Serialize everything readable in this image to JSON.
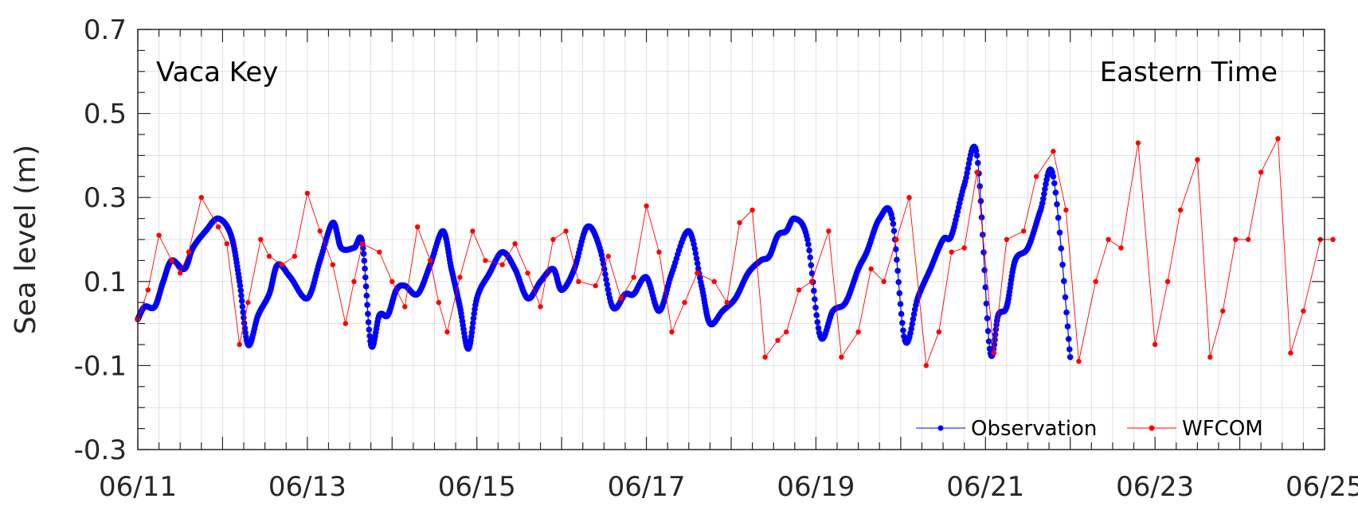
{
  "chart_data": {
    "type": "line",
    "ylabel": "Sea level (m)",
    "ylim": [
      -0.3,
      0.7
    ],
    "yticks": [
      -0.3,
      -0.1,
      0.1,
      0.3,
      0.5,
      0.7
    ],
    "ytick_labels": [
      "-0.3",
      "-0.1",
      "0.1",
      "0.3",
      "0.5",
      "0.7"
    ],
    "xlim_days": [
      0,
      14
    ],
    "xtick_labels": [
      "06/11",
      "06/13",
      "06/15",
      "06/17",
      "06/19",
      "06/21",
      "06/23",
      "06/25"
    ],
    "grid": true,
    "legend_position": "bottom-right",
    "annotations": {
      "station": "Vaca Key",
      "timezone": "Eastern Time"
    },
    "colors": {
      "observation": "#0000ff",
      "wfcom": "#ff0000",
      "grid": "#d9d9d9"
    },
    "series": [
      {
        "name": "Observation",
        "x_unit": "days since 06/11 00:00",
        "x": [
          0.0,
          0.08,
          0.2,
          0.3,
          0.4,
          0.55,
          0.65,
          0.8,
          0.95,
          1.1,
          1.2,
          1.3,
          1.42,
          1.55,
          1.65,
          1.8,
          2.0,
          2.15,
          2.3,
          2.4,
          2.55,
          2.65,
          2.75,
          2.85,
          2.95,
          3.05,
          3.15,
          3.3,
          3.45,
          3.6,
          3.7,
          3.8,
          3.9,
          4.0,
          4.15,
          4.3,
          4.45,
          4.6,
          4.75,
          4.9,
          5.0,
          5.15,
          5.3,
          5.45,
          5.6,
          5.75,
          5.85,
          6.0,
          6.15,
          6.3,
          6.5,
          6.65,
          6.75,
          6.9,
          7.05,
          7.2,
          7.35,
          7.45,
          7.55,
          7.65,
          7.75,
          7.9,
          8.05,
          8.2,
          8.35,
          8.5,
          8.6,
          8.75,
          8.9,
          9.05,
          9.2,
          9.35,
          9.5,
          9.6,
          9.75,
          9.9,
          10.05,
          10.15,
          10.25,
          10.35,
          10.5,
          10.65,
          10.8,
          11.0
        ],
        "y": [
          0.01,
          0.04,
          0.04,
          0.1,
          0.15,
          0.13,
          0.18,
          0.22,
          0.25,
          0.21,
          0.1,
          -0.05,
          0.02,
          0.07,
          0.14,
          0.11,
          0.06,
          0.15,
          0.24,
          0.18,
          0.18,
          0.19,
          -0.05,
          0.02,
          0.02,
          0.08,
          0.09,
          0.07,
          0.14,
          0.22,
          0.13,
          0.04,
          -0.06,
          0.06,
          0.12,
          0.17,
          0.13,
          0.06,
          0.1,
          0.13,
          0.08,
          0.13,
          0.23,
          0.18,
          0.04,
          0.07,
          0.07,
          0.11,
          0.03,
          0.12,
          0.22,
          0.09,
          0.0,
          0.03,
          0.06,
          0.12,
          0.15,
          0.16,
          0.21,
          0.22,
          0.25,
          0.2,
          -0.03,
          0.03,
          0.05,
          0.13,
          0.17,
          0.25,
          0.25,
          -0.04,
          0.06,
          0.13,
          0.2,
          0.21,
          0.33,
          0.4,
          -0.06,
          0.02,
          0.04,
          0.15,
          0.18,
          0.27,
          0.35,
          -0.08
        ]
      },
      {
        "name": "WFCOM",
        "x_unit": "days since 06/11 00:00",
        "x": [
          0.0,
          0.12,
          0.25,
          0.4,
          0.5,
          0.6,
          0.75,
          0.95,
          1.05,
          1.2,
          1.3,
          1.45,
          1.55,
          1.7,
          1.85,
          2.0,
          2.15,
          2.3,
          2.45,
          2.55,
          2.65,
          2.85,
          3.0,
          3.15,
          3.3,
          3.45,
          3.55,
          3.65,
          3.8,
          3.95,
          4.1,
          4.3,
          4.45,
          4.6,
          4.75,
          4.9,
          5.05,
          5.2,
          5.4,
          5.55,
          5.7,
          5.85,
          6.0,
          6.15,
          6.3,
          6.45,
          6.6,
          6.8,
          6.95,
          7.1,
          7.25,
          7.4,
          7.55,
          7.65,
          7.8,
          7.95,
          8.15,
          8.3,
          8.5,
          8.65,
          8.8,
          8.95,
          9.1,
          9.3,
          9.45,
          9.6,
          9.75,
          9.9,
          10.1,
          10.25,
          10.45,
          10.6,
          10.8,
          10.95,
          11.1,
          11.3,
          11.45,
          11.6,
          11.8,
          12.0,
          12.15,
          12.3,
          12.5,
          12.65,
          12.8,
          12.95,
          13.1,
          13.25,
          13.45,
          13.6,
          13.75,
          13.95,
          14.1
        ],
        "y": [
          0.01,
          0.08,
          0.21,
          0.15,
          0.12,
          0.17,
          0.3,
          0.23,
          0.19,
          -0.05,
          0.05,
          0.2,
          0.16,
          0.14,
          0.16,
          0.31,
          0.22,
          0.14,
          0.0,
          0.1,
          0.19,
          0.17,
          0.1,
          0.04,
          0.23,
          0.15,
          0.05,
          -0.02,
          0.11,
          0.22,
          0.15,
          0.14,
          0.19,
          0.12,
          0.04,
          0.2,
          0.22,
          0.1,
          0.09,
          0.16,
          0.06,
          0.11,
          0.28,
          0.17,
          -0.02,
          0.05,
          0.12,
          0.1,
          0.05,
          0.24,
          0.27,
          -0.08,
          -0.04,
          -0.02,
          0.08,
          0.1,
          0.22,
          -0.08,
          -0.02,
          0.13,
          0.1,
          0.2,
          0.3,
          -0.1,
          -0.02,
          0.17,
          0.18,
          0.36,
          -0.07,
          0.2,
          0.22,
          0.35,
          0.41,
          0.27,
          -0.09,
          0.1,
          0.2,
          0.18,
          0.43,
          -0.05,
          0.1,
          0.27,
          0.39,
          -0.08,
          0.03,
          0.2,
          0.2,
          0.36,
          0.44,
          -0.07,
          0.03,
          0.2,
          0.2
        ]
      }
    ],
    "legend": [
      {
        "name": "Observation"
      },
      {
        "name": "WFCOM"
      }
    ]
  }
}
